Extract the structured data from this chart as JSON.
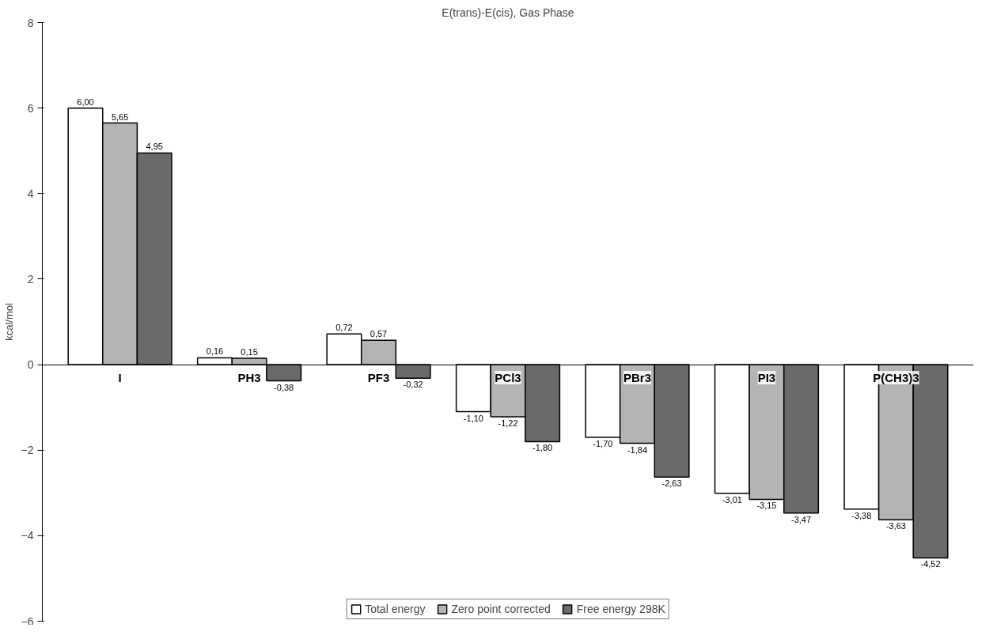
{
  "chart_data": {
    "type": "bar",
    "title": "E(trans)-E(cis), Gas Phase",
    "ylabel": "kcal/mol",
    "categories": [
      "I",
      "PH3",
      "PF3",
      "PCl3",
      "PBr3",
      "PI3",
      "P(CH3)3"
    ],
    "series": [
      {
        "name": "Total energy",
        "color": "#ffffff",
        "values": [
          6.0,
          0.16,
          0.72,
          -1.1,
          -1.7,
          -3.01,
          -3.38
        ],
        "value_labels": [
          "6,00",
          "0,16",
          "0,72",
          "-1,10",
          "-1,70",
          "-3,01",
          "-3,38"
        ]
      },
      {
        "name": "Zero point corrected",
        "color": "#b4b4b4",
        "values": [
          5.65,
          0.15,
          0.57,
          -1.22,
          -1.84,
          -3.15,
          -3.63
        ],
        "value_labels": [
          "5,65",
          "0,15",
          "0,57",
          "-1,22",
          "-1,84",
          "-3,15",
          "-3,63"
        ]
      },
      {
        "name": "Free energy 298K",
        "color": "#6a6a6a",
        "values": [
          4.95,
          -0.38,
          -0.32,
          -1.8,
          -2.63,
          -3.47,
          -4.52
        ],
        "value_labels": [
          "4,95",
          "-0,38",
          "-0,32",
          "-1,80",
          "-2,63",
          "-3,47",
          "-4,52"
        ]
      }
    ],
    "ylim": [
      -6,
      8
    ],
    "yticks": [
      -6,
      -4,
      -2,
      0,
      2,
      4,
      6,
      8
    ],
    "grid": false,
    "legend": "bottom"
  }
}
